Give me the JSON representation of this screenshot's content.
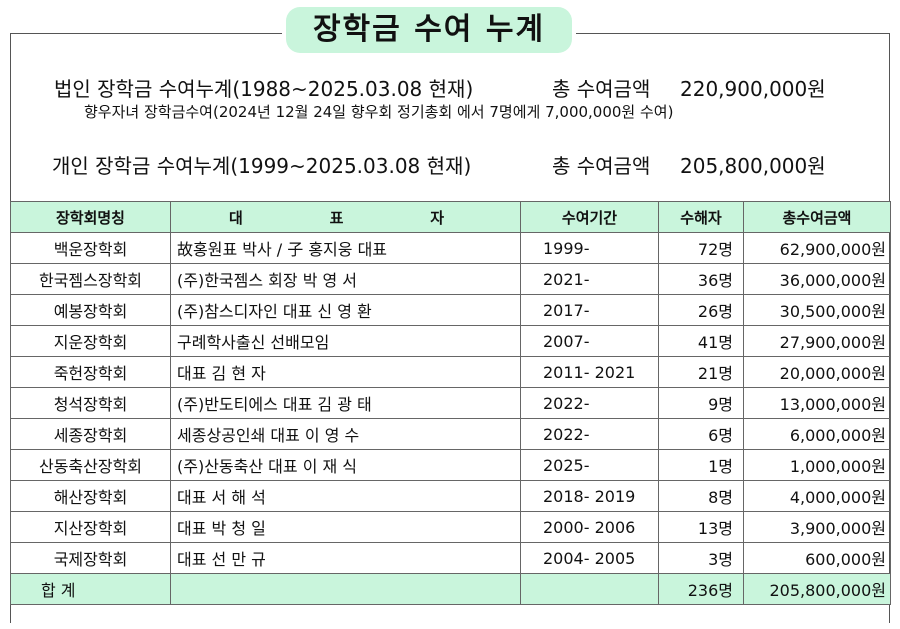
{
  "title": "장학금 수여 누계",
  "corporate": {
    "label": "법인 장학금 수여누계(1988~2025.03.08 현재)",
    "total_label": "총 수여금액",
    "total_value": "220,900,000원",
    "note": "향우자녀 장학금수여(2024년 12월 24일 향우회 정기총회 에서 7명에게 7,000,000원 수여)"
  },
  "individual": {
    "label": "개인 장학금 수여누계(1999~2025.03.08 현재)",
    "total_label": "총 수여금액",
    "total_value": "205,800,000원"
  },
  "table": {
    "headers": {
      "name": "장학회명칭",
      "rep_chars": [
        "대",
        "표",
        "자"
      ],
      "period": "수여기간",
      "count": "수해자",
      "amount": "총수여금액"
    },
    "rows": [
      {
        "name": "백운장학회",
        "rep": "故홍원표 박사 / 子 홍지웅 대표",
        "period": "1999-",
        "count": "72명",
        "amount": "62,900,000원"
      },
      {
        "name": "한국젬스장학회",
        "rep": "(주)한국젬스 회장 박 영 서",
        "period": "2021-",
        "count": "36명",
        "amount": "36,000,000원"
      },
      {
        "name": "예봉장학회",
        "rep": "(주)참스디자인 대표 신 영 환",
        "period": "2017-",
        "count": "26명",
        "amount": "30,500,000원"
      },
      {
        "name": "지운장학회",
        "rep": "구례학사출신 선배모임",
        "period": "2007-",
        "count": "41명",
        "amount": "27,900,000원"
      },
      {
        "name": "죽헌장학회",
        "rep": "대표 김 현 자",
        "period": "2011- 2021",
        "count": "21명",
        "amount": "20,000,000원"
      },
      {
        "name": "청석장학회",
        "rep": " (주)반도티에스 대표 김 광 태",
        "period": "2022-",
        "count": "9명",
        "amount": "13,000,000원"
      },
      {
        "name": "세종장학회",
        "rep": "세종상공인쇄 대표 이 영 수",
        "period": "2022-",
        "count": "6명",
        "amount": "6,000,000원"
      },
      {
        "name": "산동축산장학회",
        "rep": "(주)산동축산 대표 이 재 식",
        "period": "2025-",
        "count": "1명",
        "amount": "1,000,000원"
      },
      {
        "name": "해산장학회",
        "rep": "대표 서 해 석",
        "period": "2018- 2019",
        "count": "8명",
        "amount": "4,000,000원"
      },
      {
        "name": "지산장학회",
        "rep": "대표 박 청 일",
        "period": "2000- 2006",
        "count": "13명",
        "amount": "3,900,000원"
      },
      {
        "name": "국제장학회",
        "rep": "대표 선 만 규",
        "period": "2004- 2005",
        "count": "3명",
        "amount": "600,000원"
      }
    ],
    "total": {
      "label": "합 계",
      "count": "236명",
      "amount": "205,800,000원"
    }
  }
}
